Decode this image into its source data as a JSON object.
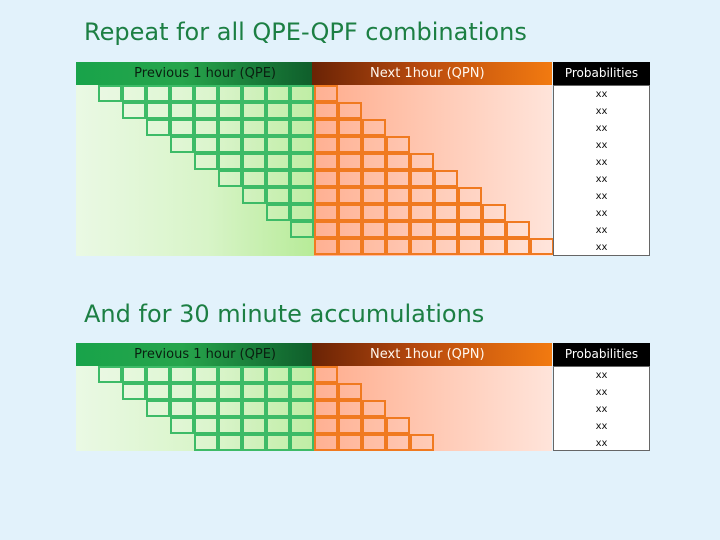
{
  "section1": {
    "title": "Repeat for all QPE-QPF combinations",
    "left_header": "Previous 1 hour (QPE)",
    "right_header": "Next 1hour (QPN)",
    "prob_header": "Probabilities",
    "values": [
      "xx",
      "xx",
      "xx",
      "xx",
      "xx",
      "xx",
      "xx",
      "xx",
      "xx",
      "xx"
    ]
  },
  "section2": {
    "title": "And for 30 minute accumulations",
    "left_header": "Previous 1 hour (QPE)",
    "right_header": "Next 1hour (QPN)",
    "prob_header": "Probabilities",
    "values": [
      "xx",
      "xx",
      "xx",
      "xx",
      "xx"
    ]
  },
  "colors": {
    "title": "#1c7f43",
    "qpe_border": "#3dbb67",
    "qpn_border": "#f07a20",
    "background": "#e2f2fb"
  }
}
